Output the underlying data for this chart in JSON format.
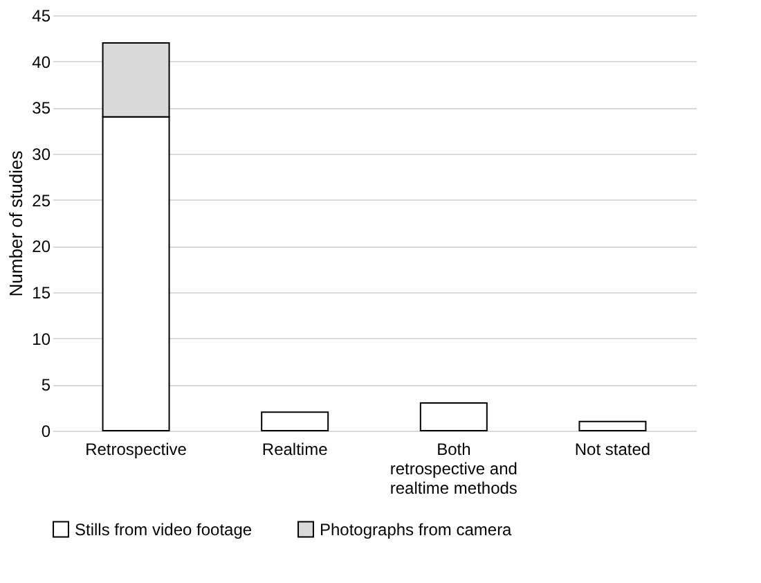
{
  "chart_data": {
    "type": "bar",
    "stacked": true,
    "categories": [
      "Retrospective",
      "Realtime",
      "Both retrospective and realtime methods",
      "Not stated"
    ],
    "series": [
      {
        "name": "Stills from video footage",
        "color": "#ffffff",
        "values": [
          34,
          2,
          3,
          1
        ]
      },
      {
        "name": "Photographs from camera",
        "color": "#d9d9d9",
        "values": [
          8,
          null,
          null,
          null
        ]
      }
    ],
    "ylabel": "Number of studies",
    "ylim": [
      0,
      45
    ],
    "yticks": [
      0,
      5,
      10,
      15,
      20,
      25,
      30,
      35,
      40,
      45
    ],
    "grid": "y",
    "legend": "bottom"
  }
}
